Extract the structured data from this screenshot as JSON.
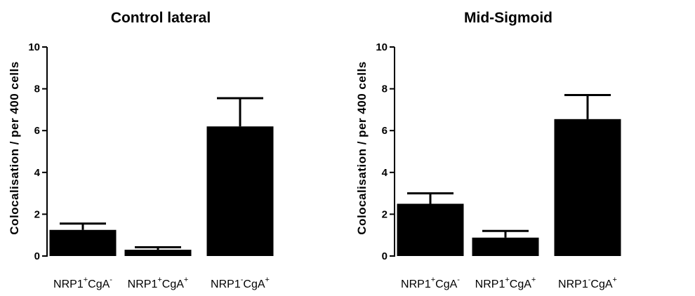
{
  "chart_data": [
    {
      "type": "bar",
      "title": "Control lateral",
      "ylabel": "Colocalisation / per 400 cells",
      "xlabel": "",
      "ylim": [
        0,
        10
      ],
      "yticks": [
        0,
        2,
        4,
        6,
        8,
        10
      ],
      "categories": [
        {
          "base1": "NRP1",
          "sup1": "+",
          "base2": "CgA",
          "sup2": "-"
        },
        {
          "base1": "NRP1",
          "sup1": "+",
          "base2": "CgA",
          "sup2": "+"
        },
        {
          "base1": "NRP1",
          "sup1": "-",
          "base2": "CgA",
          "sup2": "+"
        }
      ],
      "values": [
        1.25,
        0.3,
        6.2
      ],
      "errors": [
        0.3,
        0.12,
        1.35
      ],
      "bar_color": "#000000",
      "grid": false,
      "legend": "none"
    },
    {
      "type": "bar",
      "title": "Mid-Sigmoid",
      "ylabel": "Colocalisation / per 400 cells",
      "xlabel": "",
      "ylim": [
        0,
        10
      ],
      "yticks": [
        0,
        2,
        4,
        6,
        8,
        10
      ],
      "categories": [
        {
          "base1": "NRP1",
          "sup1": "+",
          "base2": "CgA",
          "sup2": "-"
        },
        {
          "base1": "NRP1",
          "sup1": "+",
          "base2": "CgA",
          "sup2": "+"
        },
        {
          "base1": "NRP1",
          "sup1": "-",
          "base2": "CgA",
          "sup2": "+"
        }
      ],
      "values": [
        2.5,
        0.88,
        6.55
      ],
      "errors": [
        0.5,
        0.32,
        1.15
      ],
      "bar_color": "#000000",
      "grid": false,
      "legend": "none"
    }
  ]
}
